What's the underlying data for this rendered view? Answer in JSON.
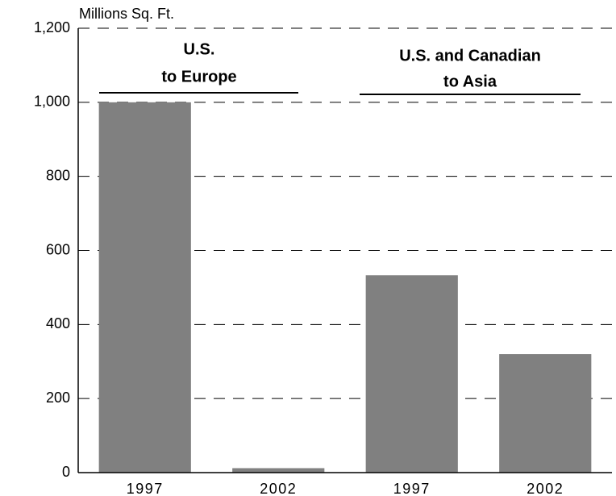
{
  "chart_data": {
    "type": "bar",
    "y_axis_label": "Millions Sq. Ft.",
    "categories": [
      "1997",
      "2002",
      "1997",
      "2002"
    ],
    "values": [
      1000,
      12,
      533,
      320
    ],
    "color": "#808080",
    "group_labels": [
      [
        "U.S.",
        "to Europe"
      ],
      [
        "U.S. and Canadian",
        "to Asia"
      ]
    ],
    "ylim": [
      0,
      1200
    ],
    "yticks": [
      0,
      200,
      400,
      600,
      800,
      {
        "value": 1000,
        "label": "1,000"
      },
      {
        "value": 1200,
        "label": "1,200"
      }
    ],
    "grid": true
  }
}
